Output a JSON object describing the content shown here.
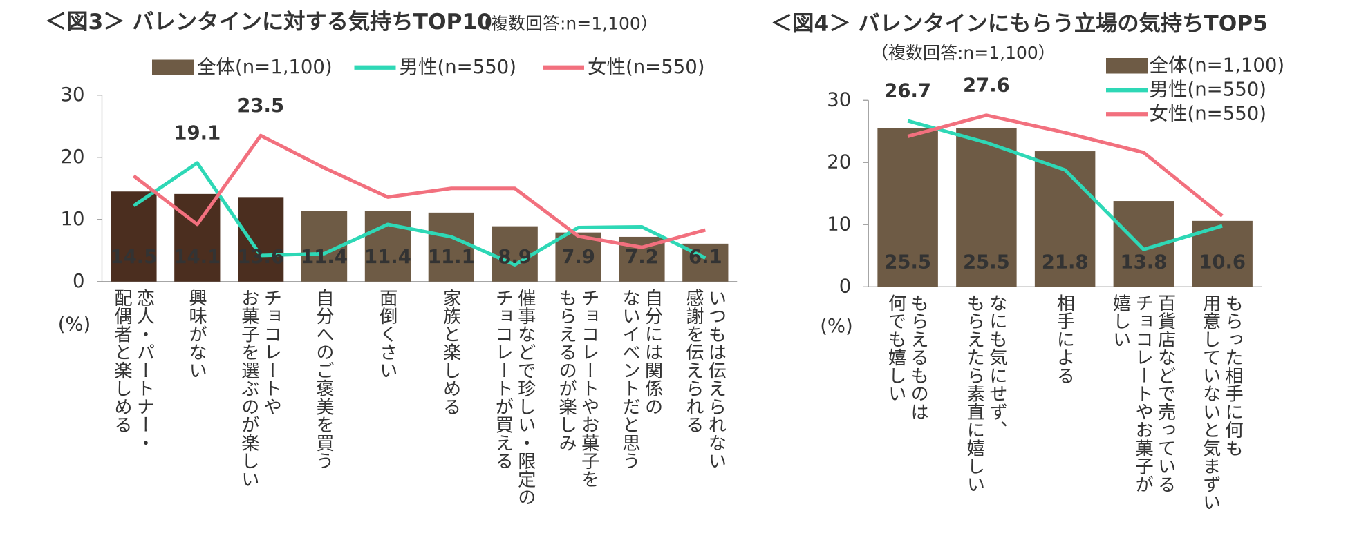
{
  "chart_data": [
    {
      "type": "combo",
      "title": "＜図3＞ バレンタインに対する気持ちTOP10",
      "subtitle": "（複数回答:n=1,100）",
      "y_label": "(%)",
      "categories": [
        "恋人・パートナー・\n配偶者と楽しめる",
        "興味がない",
        "チョコレートや\nお菓子を選ぶのが楽しい",
        "自分へのご褒美を買う",
        "面倒くさい",
        "家族と楽しめる",
        "催事などで珍しい・限定の\nチョコレートが買える",
        "チョコレートやお菓子を\nもらえるのが楽しみ",
        "自分には関係の\nないイベントだと思う",
        "いつもは伝えられない\n感謝を伝えられる"
      ],
      "series": [
        {
          "name": "全体(n=1,100)",
          "kind": "bar",
          "color": "#6e5b45",
          "highlight_color": "#4b2e1f",
          "highlight": [
            0,
            1,
            2
          ],
          "values": [
            14.5,
            14.1,
            13.6,
            11.4,
            11.4,
            11.1,
            8.9,
            7.9,
            7.2,
            6.1
          ]
        },
        {
          "name": "男性(n=550)",
          "kind": "line",
          "color": "#2ed8b6",
          "label_points": [
            1
          ],
          "values": [
            12.2,
            19.1,
            4.2,
            4.5,
            9.2,
            7.2,
            2.7,
            8.7,
            8.8,
            3.8
          ]
        },
        {
          "name": "女性(n=550)",
          "kind": "line",
          "color": "#f2707e",
          "label_points": [
            2
          ],
          "values": [
            17.0,
            9.2,
            23.5,
            18.3,
            13.6,
            15.0,
            15.0,
            7.3,
            5.5,
            8.3
          ]
        }
      ],
      "ylim": [
        0,
        30
      ],
      "yticks": [
        0,
        10,
        20,
        30
      ],
      "legend": "top"
    },
    {
      "type": "combo",
      "title": "＜図4＞ バレンタインにもらう立場の気持ちTOP5",
      "subtitle": "（複数回答:n=1,100）",
      "y_label": "(%)",
      "categories": [
        "もらえるものは\n何でも嬉しい",
        "なにも気にせず、\nもらえたら素直に嬉しい",
        "相手による",
        "百貨店などで売っている\nチョコレートやお菓子が\n嬉しい",
        "もらった相手に何も\n用意していないと気まずい"
      ],
      "series": [
        {
          "name": "全体(n=1,100)",
          "kind": "bar",
          "color": "#6e5b45",
          "values": [
            25.5,
            25.5,
            21.8,
            13.8,
            10.6
          ]
        },
        {
          "name": "男性(n=550)",
          "kind": "line",
          "color": "#2ed8b6",
          "label_points": [
            0
          ],
          "values": [
            26.7,
            23.2,
            18.8,
            6.0,
            9.8
          ]
        },
        {
          "name": "女性(n=550)",
          "kind": "line",
          "color": "#f2707e",
          "label_points": [
            1
          ],
          "values": [
            24.2,
            27.6,
            24.8,
            21.6,
            11.4
          ]
        }
      ],
      "ylim": [
        0,
        30
      ],
      "yticks": [
        0,
        10,
        20,
        30
      ],
      "legend": "top-right"
    }
  ]
}
